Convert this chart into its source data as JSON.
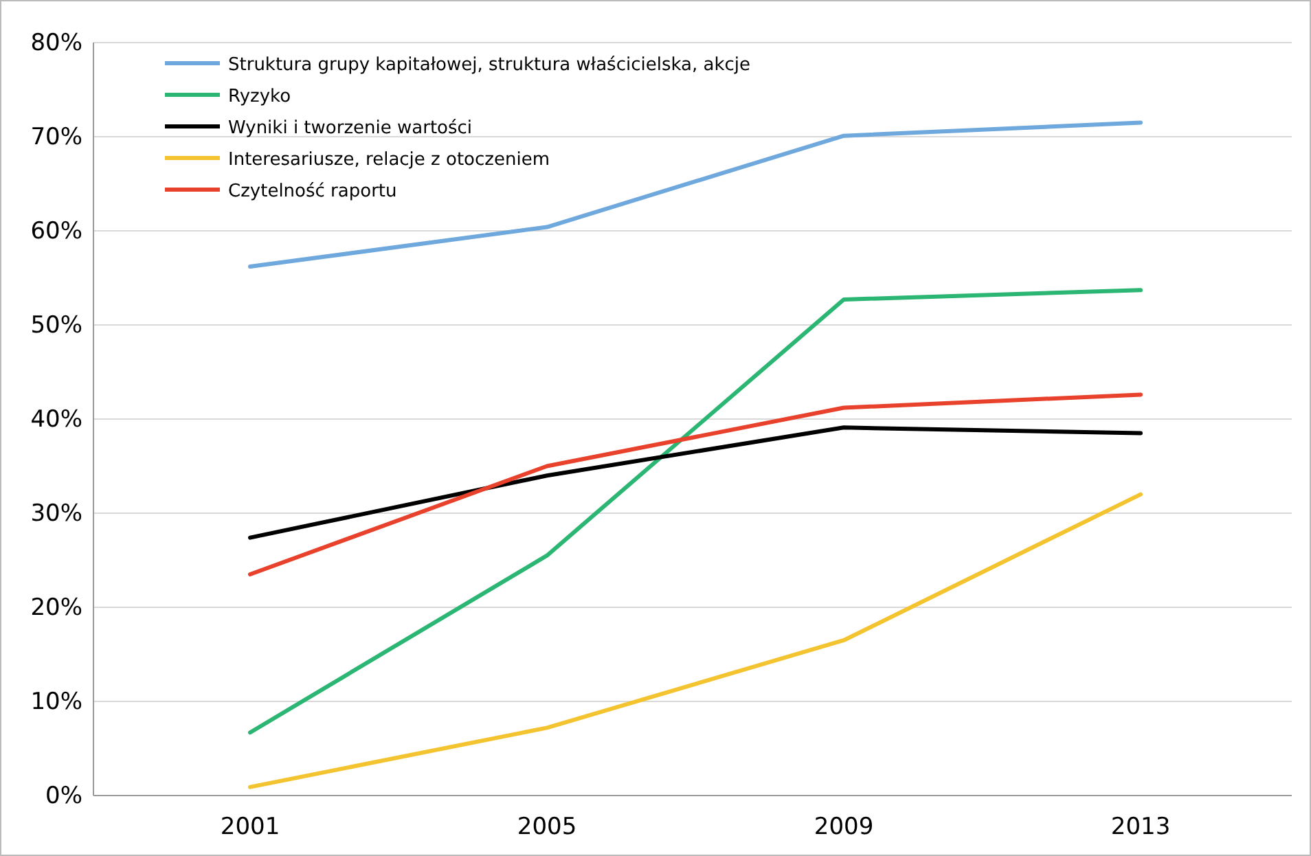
{
  "chart_data": {
    "type": "line",
    "categories": [
      "2001",
      "2005",
      "2009",
      "2013"
    ],
    "series": [
      {
        "name": "Struktura grupy kapitałowej, struktura właścicielska, akcje",
        "color": "#6fa8dc",
        "values": [
          56.2,
          60.4,
          70.1,
          71.5
        ]
      },
      {
        "name": "Ryzyko",
        "color": "#2bb673",
        "values": [
          6.7,
          25.5,
          52.7,
          53.7
        ]
      },
      {
        "name": "Wyniki i tworzenie wartości",
        "color": "#000000",
        "values": [
          27.4,
          34.0,
          39.1,
          38.5
        ]
      },
      {
        "name": "Interesariusze, relacje z otoczeniem",
        "color": "#f4c430",
        "values": [
          0.9,
          7.2,
          16.5,
          32.0
        ]
      },
      {
        "name": "Czytelność raportu",
        "color": "#e8412c",
        "values": [
          23.5,
          35.0,
          41.2,
          42.6
        ]
      }
    ],
    "ylim": [
      0,
      80
    ],
    "yticks": [
      {
        "value": 0,
        "label": "0%"
      },
      {
        "value": 10,
        "label": "10%"
      },
      {
        "value": 20,
        "label": "20%"
      },
      {
        "value": 30,
        "label": "30%"
      },
      {
        "value": 40,
        "label": "40%"
      },
      {
        "value": 50,
        "label": "50%"
      },
      {
        "value": 60,
        "label": "60%"
      },
      {
        "value": 70,
        "label": "70%"
      },
      {
        "value": 80,
        "label": "80%"
      }
    ],
    "grid": "y",
    "legend": "top left",
    "marker": "none",
    "line_style": "solid"
  }
}
